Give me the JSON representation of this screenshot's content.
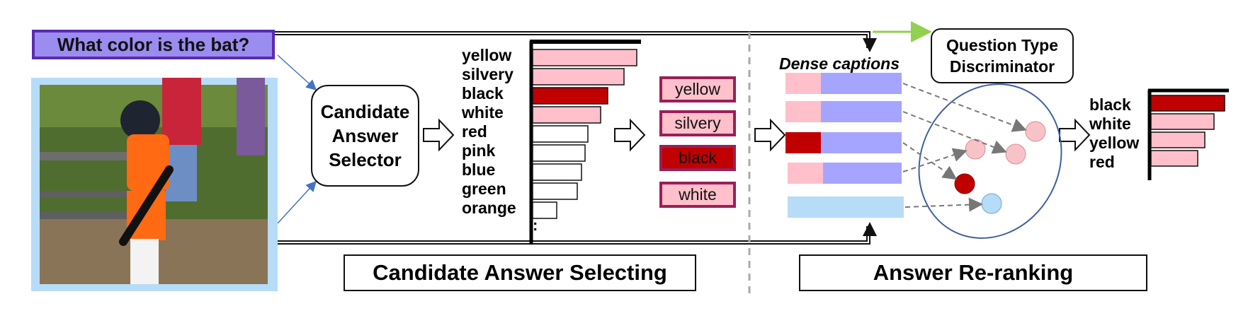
{
  "question": "What color is the bat?",
  "selector_label": [
    "Candidate",
    "Answer",
    "Selector"
  ],
  "ranking": [
    {
      "label": "yellow",
      "value": 1.0,
      "color": "#ffc0cb"
    },
    {
      "label": "silvery",
      "value": 0.88,
      "color": "#ffc0cb"
    },
    {
      "label": "black",
      "value": 0.72,
      "color": "#c00000"
    },
    {
      "label": "white",
      "value": 0.65,
      "color": "#ffc0cb"
    },
    {
      "label": "red",
      "value": 0.53,
      "color": "#ffffff"
    },
    {
      "label": "pink",
      "value": 0.5,
      "color": "#ffffff"
    },
    {
      "label": "blue",
      "value": 0.47,
      "color": "#ffffff"
    },
    {
      "label": "green",
      "value": 0.43,
      "color": "#ffffff"
    },
    {
      "label": "orange",
      "value": 0.23,
      "color": "#ffffff"
    }
  ],
  "ellipsis": ":",
  "candidates": [
    {
      "label": "yellow",
      "color": "#ffc0cb"
    },
    {
      "label": "silvery",
      "color": "#ffc0cb"
    },
    {
      "label": "black",
      "color": "#c00000"
    },
    {
      "label": "white",
      "color": "#ffc0cb"
    }
  ],
  "dense_captions_label": "Dense captions",
  "qtd_label": [
    "Question Type",
    "Discriminator"
  ],
  "reranked": [
    {
      "label": "black",
      "value": 1.0,
      "color": "#c00000"
    },
    {
      "label": "white",
      "value": 0.86,
      "color": "#ffc0cb"
    },
    {
      "label": "yellow",
      "value": 0.73,
      "color": "#ffc0cb"
    },
    {
      "label": "red",
      "value": 0.63,
      "color": "#ffc0cb"
    }
  ],
  "section_left": "Candidate Answer Selecting",
  "section_right": "Answer Re-ranking",
  "colors": {
    "question_fill": "#9b8cf0",
    "question_border": "#5a2bb0",
    "pink": "#ffc0cb",
    "dark_red": "#c00000",
    "periwinkle": "#a5a5ff",
    "light_blue": "#b7dcf7",
    "green_arrow": "#92d050",
    "ellipse": "#3f5fa0"
  }
}
